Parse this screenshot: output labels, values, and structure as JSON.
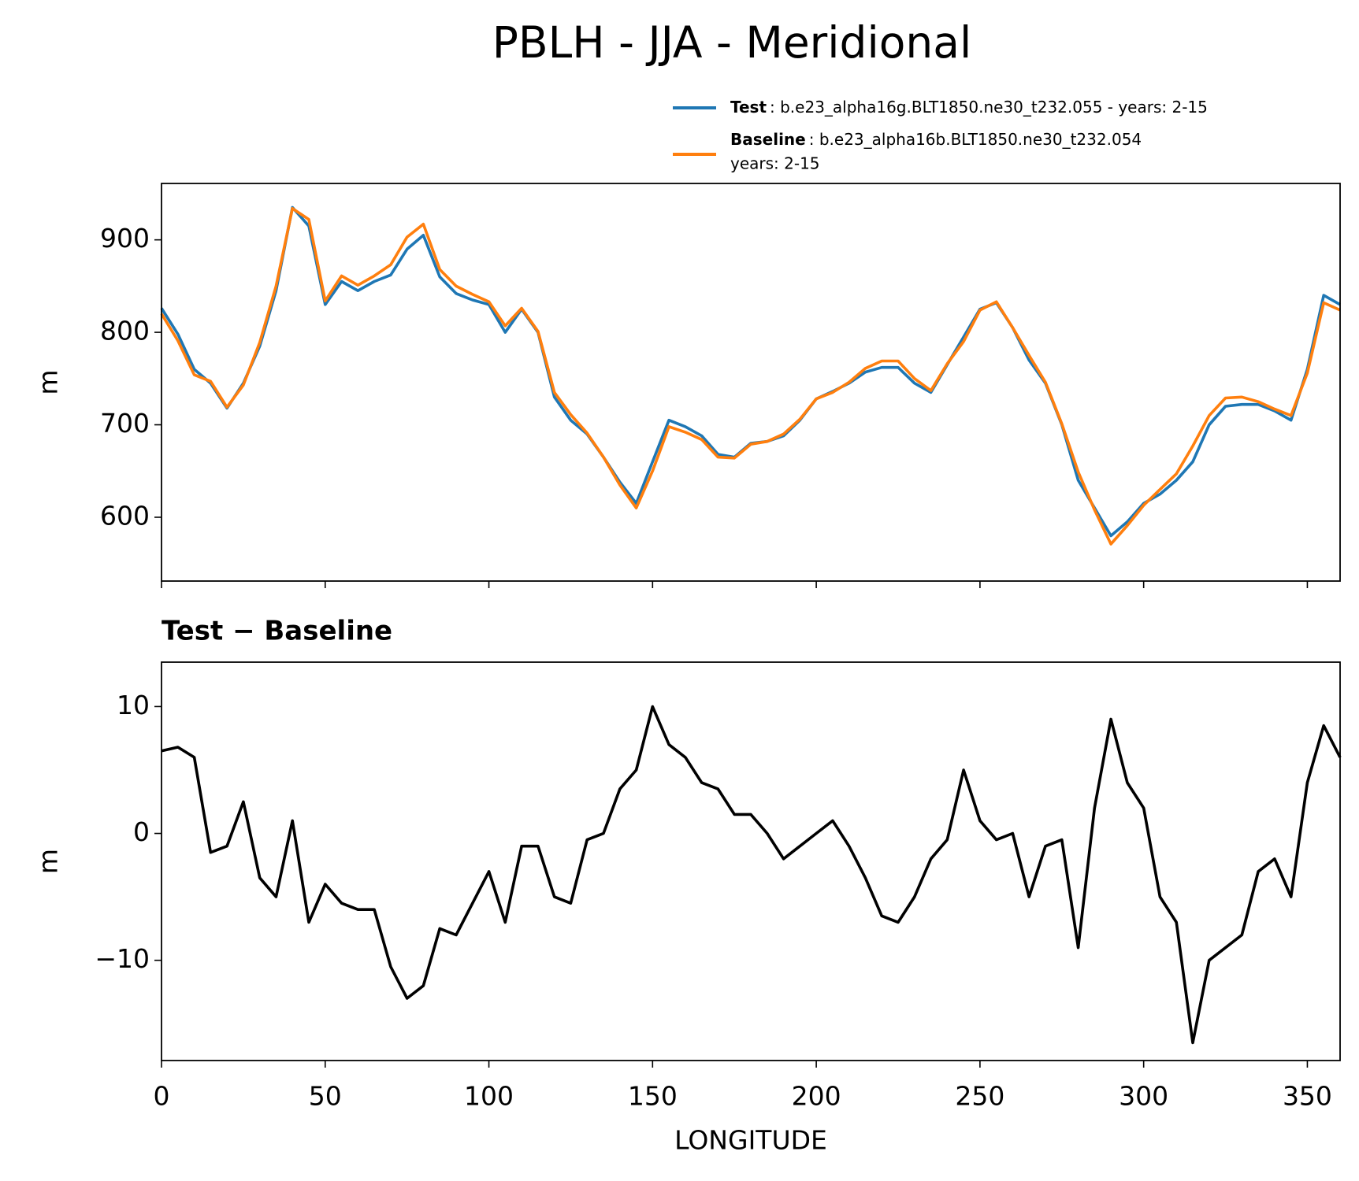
{
  "title": "PBLH - JJA - Meridional",
  "chart_data": [
    {
      "type": "line",
      "ylabel": "m",
      "legend": {
        "location": "upper right",
        "entries": [
          {
            "bold": "Test",
            "text": ": b.e23_alpha16g.BLT1850.ne30_t232.055 - years: 2-15"
          },
          {
            "bold": "Baseline",
            "text": ": b.e23_alpha16b.BLT1850.ne30_t232.054",
            "text2": "years: 2-15"
          }
        ]
      },
      "x": [
        0,
        5,
        10,
        15,
        20,
        25,
        30,
        35,
        40,
        45,
        50,
        55,
        60,
        65,
        70,
        75,
        80,
        85,
        90,
        95,
        100,
        105,
        110,
        115,
        120,
        125,
        130,
        135,
        140,
        145,
        150,
        155,
        160,
        165,
        170,
        175,
        180,
        185,
        190,
        195,
        200,
        205,
        210,
        215,
        220,
        225,
        230,
        235,
        240,
        245,
        250,
        255,
        260,
        265,
        270,
        275,
        280,
        285,
        290,
        295,
        300,
        305,
        310,
        315,
        320,
        325,
        330,
        335,
        340,
        345,
        350,
        355,
        360
      ],
      "series": [
        {
          "name": "Test",
          "color": "#1f77b4",
          "values": [
            826,
            798,
            760,
            745,
            718,
            745,
            785,
            845,
            935,
            915,
            830,
            855,
            845,
            855,
            862,
            890,
            905,
            860,
            842,
            835,
            830,
            800,
            825,
            800,
            730,
            705,
            690,
            665,
            638,
            615,
            660,
            705,
            698,
            688,
            668,
            665,
            680,
            682,
            688,
            705,
            728,
            736,
            745,
            757,
            762,
            762,
            745,
            735,
            765,
            795,
            825,
            832,
            805,
            770,
            745,
            700,
            640,
            610,
            580,
            595,
            615,
            625,
            640,
            660,
            700,
            720,
            722,
            722,
            715,
            705,
            760,
            840,
            830
          ]
        },
        {
          "name": "Baseline",
          "color": "#ff7f0e",
          "values": [
            820,
            791,
            754,
            747,
            719,
            743,
            789,
            850,
            934,
            922,
            834,
            861,
            851,
            861,
            873,
            903,
            917,
            868,
            850,
            841,
            833,
            807,
            826,
            801,
            735,
            711,
            691,
            665,
            635,
            610,
            650,
            698,
            692,
            684,
            665,
            664,
            679,
            682,
            690,
            706,
            728,
            735,
            746,
            761,
            769,
            769,
            750,
            737,
            766,
            790,
            824,
            833,
            805,
            775,
            746,
            701,
            649,
            608,
            571,
            591,
            613,
            630,
            647,
            677,
            710,
            729,
            730,
            725,
            717,
            710,
            756,
            832,
            824
          ]
        }
      ],
      "xlim": [
        0,
        360
      ],
      "xticks": [
        0,
        50,
        100,
        150,
        200,
        250,
        300,
        350
      ],
      "ylim": [
        531,
        961
      ],
      "yticks": [
        600,
        700,
        800,
        900
      ]
    },
    {
      "type": "line",
      "title": "Test − Baseline",
      "ylabel": "m",
      "xlabel": "LONGITUDE",
      "x": [
        0,
        5,
        10,
        15,
        20,
        25,
        30,
        35,
        40,
        45,
        50,
        55,
        60,
        65,
        70,
        75,
        80,
        85,
        90,
        95,
        100,
        105,
        110,
        115,
        120,
        125,
        130,
        135,
        140,
        145,
        150,
        155,
        160,
        165,
        170,
        175,
        180,
        185,
        190,
        195,
        200,
        205,
        210,
        215,
        220,
        225,
        230,
        235,
        240,
        245,
        250,
        255,
        260,
        265,
        270,
        275,
        280,
        285,
        290,
        295,
        300,
        305,
        310,
        315,
        320,
        325,
        330,
        335,
        340,
        345,
        350,
        355,
        360
      ],
      "series": [
        {
          "color": "#000000",
          "values": [
            6.5,
            6.8,
            6,
            -1.5,
            -1,
            2.5,
            -3.5,
            -5,
            1,
            -7,
            -4,
            -5.5,
            -6,
            -6,
            -10.5,
            -13,
            -12,
            -7.5,
            -8,
            -5.5,
            -3,
            -7,
            -1,
            -1,
            -5,
            -5.5,
            -0.5,
            0,
            3.5,
            5,
            10,
            7,
            6,
            4,
            3.5,
            1.5,
            1.5,
            0,
            -2,
            -1,
            0,
            1,
            -1,
            -3.5,
            -6.5,
            -7,
            -5,
            -2,
            -0.5,
            5,
            1,
            -0.5,
            0,
            -5,
            -1,
            -0.5,
            -9,
            2,
            9,
            4,
            2,
            -5,
            -7,
            -16.5,
            -10,
            -9,
            -8,
            -3,
            -2,
            -5,
            4,
            8.5,
            6
          ]
        }
      ],
      "xlim": [
        0,
        360
      ],
      "xticks": [
        0,
        50,
        100,
        150,
        200,
        250,
        300,
        350
      ],
      "ylim": [
        -17.9,
        13.5
      ],
      "yticks": [
        {
          "value": -10,
          "label": "−10"
        },
        0,
        10
      ]
    }
  ]
}
